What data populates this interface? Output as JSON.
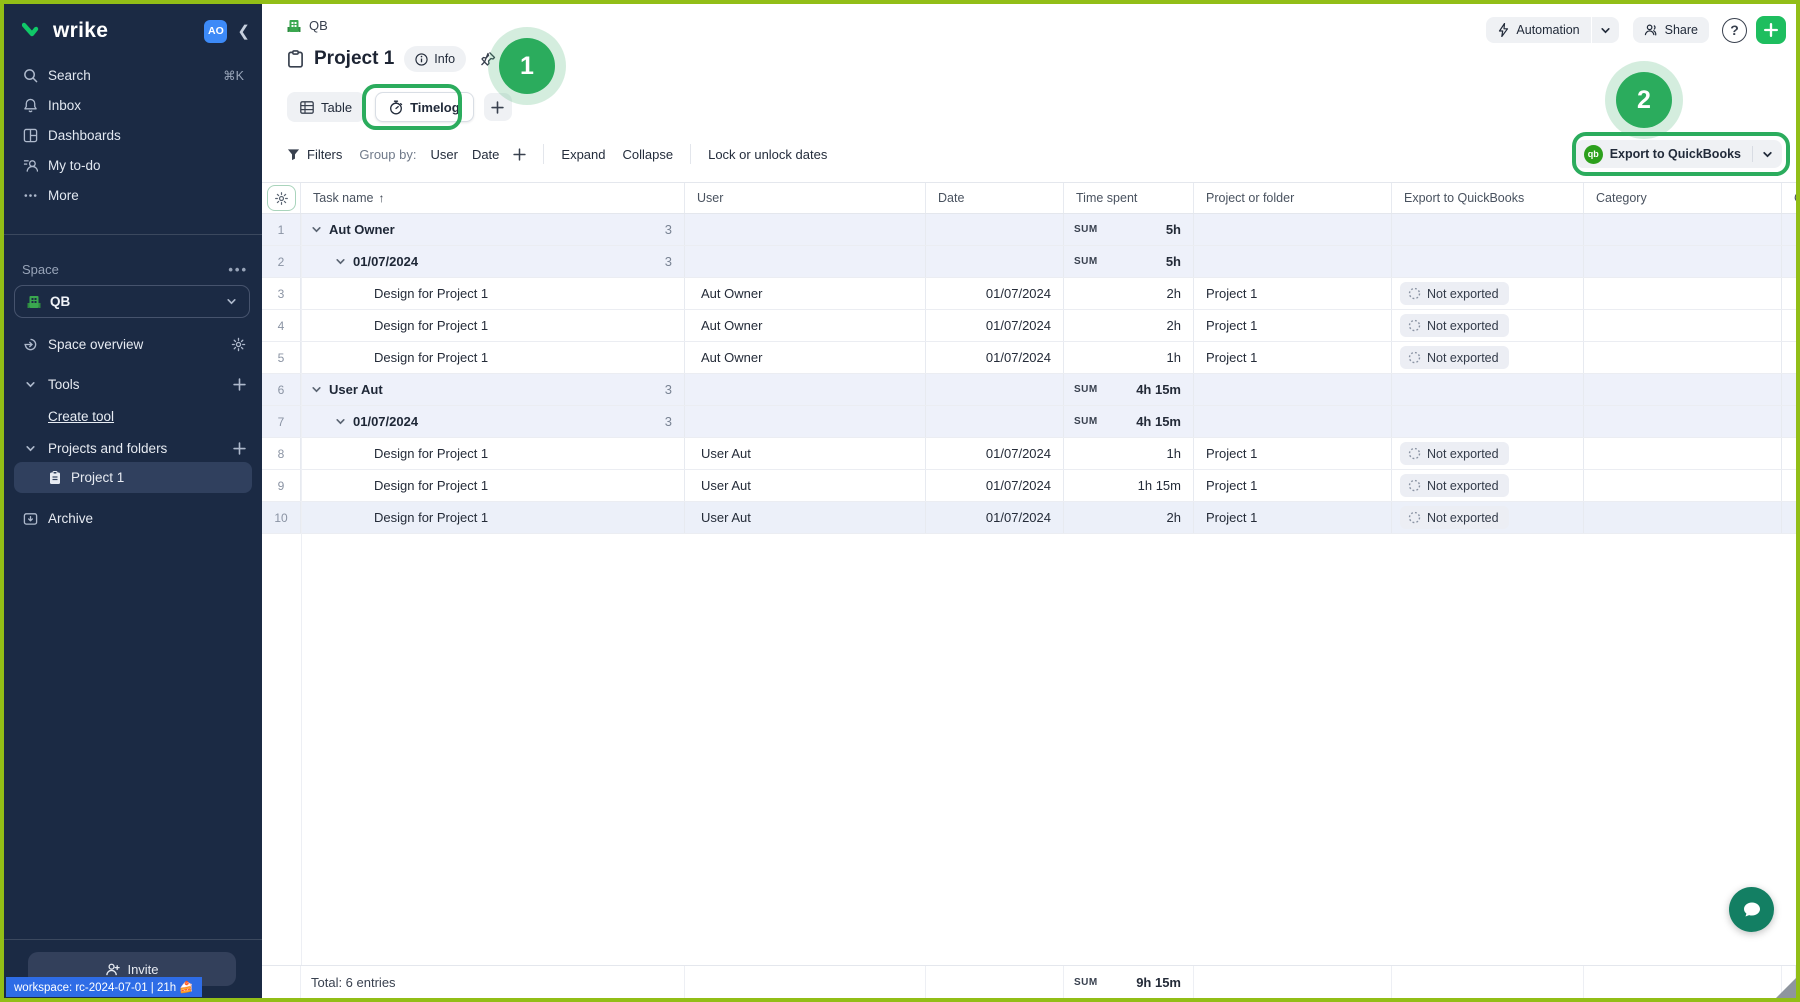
{
  "brand": {
    "name": "wrike",
    "avatar": "AO"
  },
  "sidebar": {
    "nav": [
      {
        "label": "Search",
        "shortcut": "⌘K"
      },
      {
        "label": "Inbox"
      },
      {
        "label": "Dashboards"
      },
      {
        "label": "My to-do"
      },
      {
        "label": "More"
      }
    ],
    "space_label": "Space",
    "space_name": "QB",
    "space_overview": "Space overview",
    "tools": "Tools",
    "create_tool": "Create tool",
    "projects_folders": "Projects and folders",
    "project": "Project 1",
    "archive": "Archive",
    "invite_label": "Invite",
    "workspace_badge": "workspace: rc-2024-07-01 | 21h 🍰"
  },
  "header": {
    "breadcrumb": "QB",
    "title": "Project 1",
    "info_label": "Info",
    "automation_label": "Automation",
    "share_label": "Share",
    "help_label": "?",
    "tab_table": "Table",
    "tab_timelog": "Timelog"
  },
  "toolbar": {
    "filters_label": "Filters",
    "group_by_label": "Group by:",
    "group_user": "User",
    "group_date": "Date",
    "expand_label": "Expand",
    "collapse_label": "Collapse",
    "lock_label": "Lock or unlock dates",
    "export_button": "Export to QuickBooks",
    "qb_logo_text": "qb"
  },
  "annotations": {
    "step1": "1",
    "step2": "2"
  },
  "table": {
    "columns": [
      "Task name",
      "User",
      "Date",
      "Time spent",
      "Project or folder",
      "Export to QuickBooks",
      "Category",
      "C"
    ],
    "sort_arrow": "↑",
    "sum_label": "SUM",
    "rows": [
      {
        "num": "1",
        "type": "group",
        "level": 0,
        "name": "Aut Owner",
        "count": "3",
        "time": "5h"
      },
      {
        "num": "2",
        "type": "group",
        "level": 1,
        "name": "01/07/2024",
        "count": "3",
        "time": "5h"
      },
      {
        "num": "3",
        "type": "task",
        "task": "Design for Project 1",
        "user": "Aut Owner",
        "date": "01/07/2024",
        "time": "2h",
        "project": "Project 1",
        "export": "Not exported"
      },
      {
        "num": "4",
        "type": "task",
        "task": "Design for Project 1",
        "user": "Aut Owner",
        "date": "01/07/2024",
        "time": "2h",
        "project": "Project 1",
        "export": "Not exported"
      },
      {
        "num": "5",
        "type": "task",
        "task": "Design for Project 1",
        "user": "Aut Owner",
        "date": "01/07/2024",
        "time": "1h",
        "project": "Project 1",
        "export": "Not exported"
      },
      {
        "num": "6",
        "type": "group",
        "level": 0,
        "name": "User Aut",
        "count": "3",
        "time": "4h 15m"
      },
      {
        "num": "7",
        "type": "group",
        "level": 1,
        "name": "01/07/2024",
        "count": "3",
        "time": "4h 15m"
      },
      {
        "num": "8",
        "type": "task",
        "task": "Design for Project 1",
        "user": "User Aut",
        "date": "01/07/2024",
        "time": "1h",
        "project": "Project 1",
        "export": "Not exported"
      },
      {
        "num": "9",
        "type": "task",
        "task": "Design for Project 1",
        "user": "User Aut",
        "date": "01/07/2024",
        "time": "1h 15m",
        "project": "Project 1",
        "export": "Not exported"
      },
      {
        "num": "10",
        "type": "task",
        "highlight": true,
        "task": "Design for Project 1",
        "user": "User Aut",
        "date": "01/07/2024",
        "time": "2h",
        "project": "Project 1",
        "export": "Not exported"
      }
    ],
    "total": {
      "label": "Total: 6 entries",
      "time": "9h 15m"
    }
  }
}
